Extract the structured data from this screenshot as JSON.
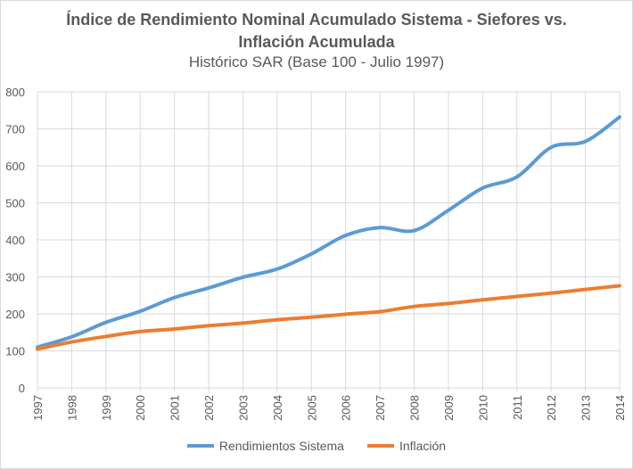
{
  "chart_data": {
    "type": "line",
    "title": "Índice de Rendimiento Nominal Acumulado Sistema - Siefores vs. Inflación Acumulada",
    "title_line1": "Índice de Rendimiento Nominal Acumulado Sistema - Siefores vs.",
    "title_line2": "Inflación Acumulada",
    "subtitle": "Histórico SAR (Base 100 - Julio 1997)",
    "xlabel": "",
    "ylabel": "",
    "x": [
      "1997",
      "1998",
      "1999",
      "2000",
      "2001",
      "2002",
      "2003",
      "2004",
      "2005",
      "2006",
      "2007",
      "2008",
      "2009",
      "2010",
      "2011",
      "2012",
      "2013",
      "2014"
    ],
    "ylim": [
      0,
      800
    ],
    "yticks": [
      0,
      100,
      200,
      300,
      400,
      500,
      600,
      700,
      800
    ],
    "grid": true,
    "smooth": true,
    "legend_position": "bottom",
    "series": [
      {
        "name": "Rendimientos Sistema",
        "color": "#5B9BD5",
        "values": [
          110,
          138,
          177,
          207,
          244,
          270,
          299,
          321,
          362,
          412,
          433,
          425,
          480,
          540,
          570,
          650,
          666,
          732
        ]
      },
      {
        "name": "Inflación",
        "color": "#ED7D31",
        "values": [
          105,
          124,
          139,
          152,
          159,
          168,
          175,
          184,
          191,
          199,
          206,
          220,
          228,
          238,
          247,
          256,
          266,
          276
        ]
      }
    ]
  }
}
